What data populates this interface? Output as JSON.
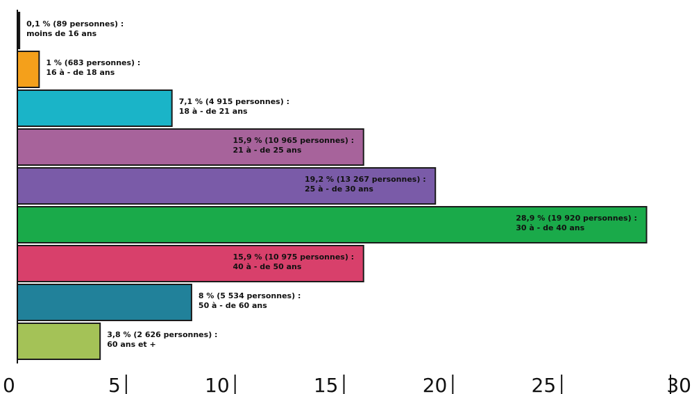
{
  "chart_data": {
    "type": "bar",
    "orientation": "horizontal",
    "xlim": [
      0,
      30
    ],
    "xticks": [
      "0",
      "5",
      "10",
      "15",
      "20",
      "25",
      "30"
    ],
    "grid": false,
    "legend": "none",
    "bars": [
      {
        "value": 0.1,
        "color": "#111111",
        "line1": "0,1 % (89 personnes) :",
        "line2": "moins de 16 ans",
        "label_pos": "outside"
      },
      {
        "value": 1,
        "color": "#f4a01b",
        "line1": "1 % (683 personnes) :",
        "line2": "16 à - de 18 ans",
        "label_pos": "outside"
      },
      {
        "value": 7.1,
        "color": "#1ab4c8",
        "line1": "7,1 % (4 915 personnes) :",
        "line2": "18 à - de 21 ans",
        "label_pos": "outside"
      },
      {
        "value": 15.9,
        "color": "#a7639b",
        "line1": "15,9 % (10 965 personnes) :",
        "line2": "21 à - de 25 ans",
        "label_pos": "inside"
      },
      {
        "value": 19.2,
        "color": "#7a5ba8",
        "line1": "19,2 % (13 267 personnes) :",
        "line2": "25 à - de 30 ans",
        "label_pos": "inside"
      },
      {
        "value": 28.9,
        "color": "#1aaa4a",
        "line1": "28,9 % (19 920 personnes) :",
        "line2": "30 à - de 40 ans",
        "label_pos": "inside"
      },
      {
        "value": 15.9,
        "color": "#d8406b",
        "line1": "15,9 % (10 975 personnes) :",
        "line2": "40 à - de 50 ans",
        "label_pos": "inside"
      },
      {
        "value": 8,
        "color": "#21819a",
        "line1": "8 % (5 534 personnes) :",
        "line2": "50 à - de 60 ans",
        "label_pos": "outside"
      },
      {
        "value": 3.8,
        "color": "#a4c257",
        "line1": "3,8 % (2 626 personnes) :",
        "line2": "60 ans et +",
        "label_pos": "outside"
      }
    ]
  }
}
